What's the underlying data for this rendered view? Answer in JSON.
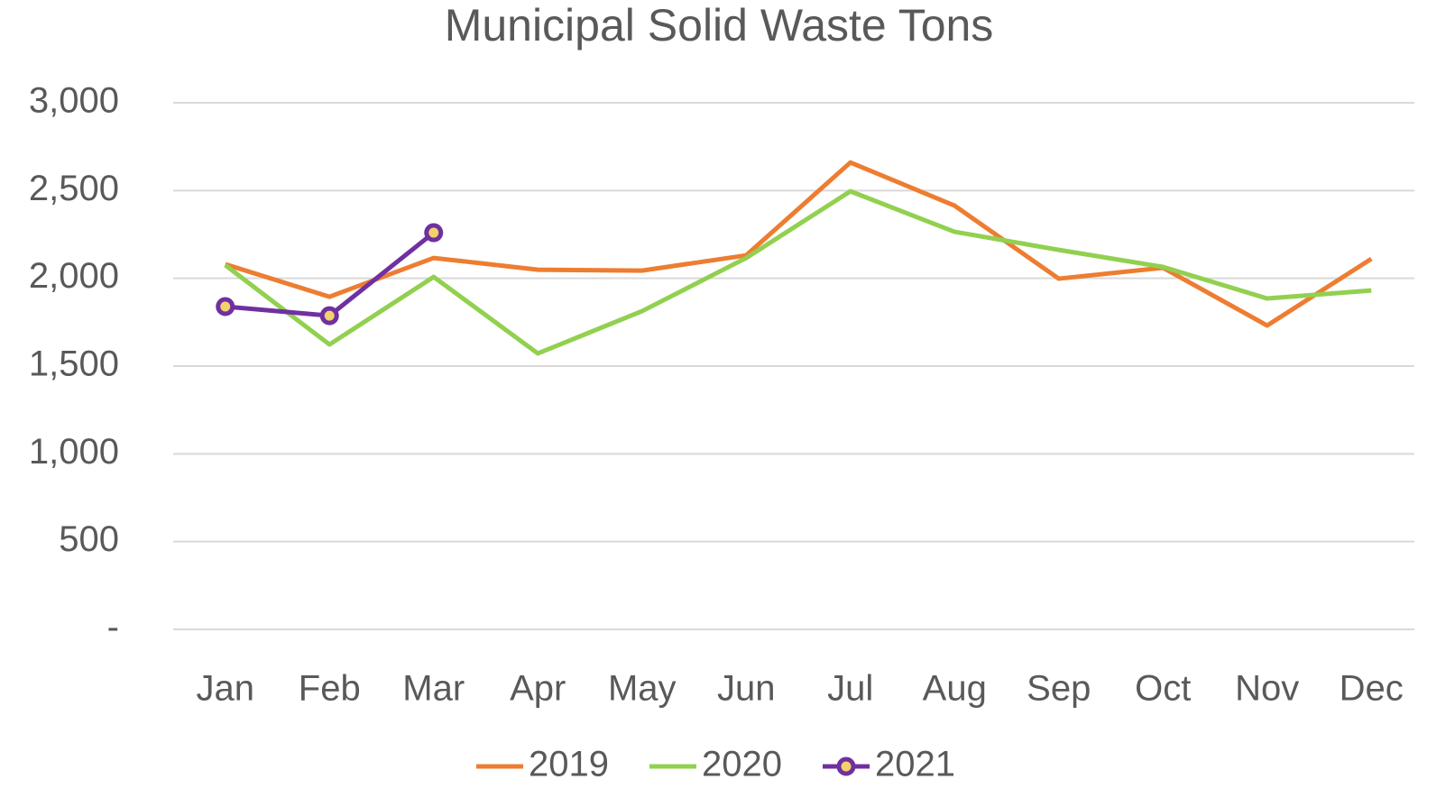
{
  "chart_data": {
    "type": "line",
    "title": "Municipal Solid Waste Tons",
    "categories": [
      "Jan",
      "Feb",
      "Mar",
      "Apr",
      "May",
      "Jun",
      "Jul",
      "Aug",
      "Sep",
      "Oct",
      "Nov",
      "Dec"
    ],
    "series": [
      {
        "name": "2019",
        "color": "#ed7d31",
        "values": [
          2080,
          1895,
          2116,
          2049,
          2044,
          2131,
          2660,
          2414,
          1998,
          2060,
          1731,
          2111
        ]
      },
      {
        "name": "2020",
        "color": "#92d050",
        "values": [
          2075,
          1623,
          2008,
          1572,
          1813,
          2116,
          2496,
          2265,
          2162,
          2065,
          1885,
          1931
        ]
      },
      {
        "name": "2021",
        "color": "#7030a0",
        "markers": true,
        "values": [
          1839,
          1787,
          2260,
          null,
          null,
          null,
          null,
          null,
          null,
          null,
          null,
          null
        ]
      }
    ],
    "ylim": [
      0,
      3000
    ],
    "yticks": [
      {
        "value": 0,
        "label": "-"
      },
      500,
      {
        "value": 1000,
        "label": "1,000"
      },
      {
        "value": 1500,
        "label": "1,500"
      },
      {
        "value": 2000,
        "label": "2,000"
      },
      {
        "value": 2500,
        "label": "2,500"
      },
      {
        "value": 3000,
        "label": "3,000"
      }
    ],
    "grid": true,
    "legend": "bottom"
  }
}
